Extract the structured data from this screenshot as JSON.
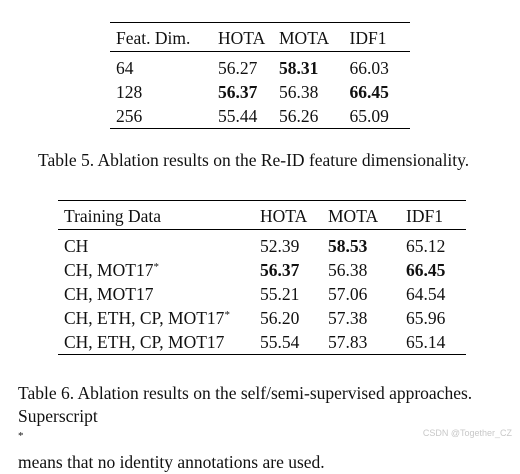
{
  "table5": {
    "headers": [
      "Feat. Dim.",
      "HOTA",
      "MOTA",
      "IDF1"
    ],
    "rows": [
      [
        "64",
        "56.27",
        "58.31",
        "66.03"
      ],
      [
        "128",
        "56.37",
        "56.38",
        "66.45"
      ],
      [
        "256",
        "55.44",
        "56.26",
        "65.09"
      ]
    ],
    "bold": [
      [
        0,
        2
      ],
      [
        1,
        1
      ],
      [
        1,
        3
      ]
    ],
    "caption": "Table 5. Ablation results on the Re-ID feature dimensionality."
  },
  "table6": {
    "headers": [
      "Training Data",
      "HOTA",
      "MOTA",
      "IDF1"
    ],
    "rows": [
      [
        "CH",
        "52.39",
        "58.53",
        "65.12"
      ],
      [
        "CH, MOT17",
        "56.37",
        "56.38",
        "66.45"
      ],
      [
        "CH, MOT17",
        "55.21",
        "57.06",
        "64.54"
      ],
      [
        "CH, ETH, CP, MOT17",
        "56.20",
        "57.38",
        "65.96"
      ],
      [
        "CH, ETH, CP, MOT17",
        "55.54",
        "57.83",
        "65.14"
      ]
    ],
    "superscript_marks": [
      "",
      "*",
      "",
      "*",
      ""
    ],
    "bold": [
      [
        0,
        2
      ],
      [
        1,
        1
      ],
      [
        1,
        3
      ]
    ],
    "caption_line1": "Table 6. Ablation results on the self/semi-supervised approaches.",
    "caption_line2_pre": "Superscript",
    "caption_line2_mark": "*",
    "caption_line2_post": " means that no identity annotations are used."
  },
  "watermark": "CSDN @Together_CZ"
}
